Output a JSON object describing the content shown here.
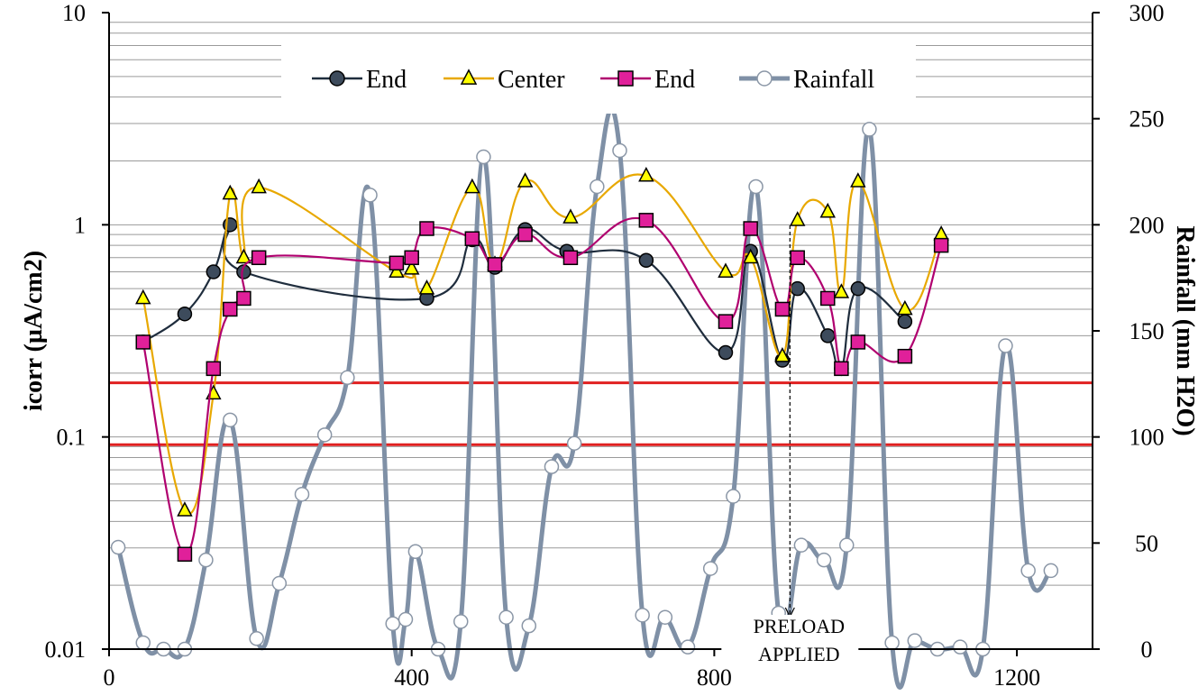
{
  "chart_data": {
    "type": "line",
    "title": "",
    "xlabel": "",
    "ylabel": "icorr (µA/cm2)",
    "y2label": "Rainfall (mm H2O)",
    "xlim": [
      0,
      1300
    ],
    "ylim": [
      0.01,
      10
    ],
    "yscale": "log",
    "y2lim": [
      0,
      300
    ],
    "x_ticks": [
      0,
      400,
      800,
      1200
    ],
    "x_tick_labels": [
      "0",
      "400",
      "800",
      "1200"
    ],
    "y_ticks": [
      0.01,
      0.1,
      1,
      10
    ],
    "y_tick_labels": [
      "0.01",
      "0.1",
      "1",
      "10"
    ],
    "y2_ticks": [
      0,
      50,
      100,
      150,
      200,
      250,
      300
    ],
    "y2_tick_labels": [
      "0",
      "50",
      "100",
      "150",
      "200",
      "250",
      "300"
    ],
    "legend_position": "top-center",
    "series": [
      {
        "name": "End",
        "axis": "left",
        "color": "#1f2d3d",
        "marker": "circle",
        "marker_fill": "#3d4b5c",
        "x": [
          45,
          100,
          138,
          160,
          178,
          420,
          480,
          510,
          550,
          605,
          710,
          815,
          848,
          890,
          910,
          950,
          968,
          990,
          1052
        ],
        "y": [
          0.28,
          0.38,
          0.6,
          1.0,
          0.6,
          0.45,
          0.85,
          0.63,
          0.95,
          0.75,
          0.68,
          0.25,
          0.75,
          0.23,
          0.5,
          0.3,
          0.21,
          0.5,
          0.35
        ]
      },
      {
        "name": "Center",
        "axis": "left",
        "color": "#e8a800",
        "marker": "triangle",
        "marker_fill": "#ffff00",
        "x": [
          45,
          100,
          138,
          160,
          178,
          198,
          380,
          400,
          420,
          480,
          510,
          550,
          610,
          710,
          815,
          848,
          890,
          910,
          950,
          968,
          990,
          1052,
          1100
        ],
        "y": [
          0.45,
          0.045,
          0.16,
          1.4,
          0.7,
          1.5,
          0.6,
          0.62,
          0.5,
          1.5,
          0.65,
          1.6,
          1.08,
          1.7,
          0.6,
          0.7,
          0.24,
          1.05,
          1.15,
          0.48,
          1.6,
          0.4,
          0.9
        ]
      },
      {
        "name": "End",
        "axis": "left",
        "color": "#b0006f",
        "marker": "square",
        "marker_fill": "#e0209a",
        "x": [
          45,
          100,
          138,
          160,
          178,
          198,
          380,
          400,
          420,
          480,
          510,
          550,
          610,
          710,
          815,
          848,
          890,
          910,
          950,
          968,
          990,
          1052,
          1100
        ],
        "y": [
          0.28,
          0.028,
          0.21,
          0.4,
          0.45,
          0.7,
          0.66,
          0.7,
          0.96,
          0.86,
          0.65,
          0.9,
          0.7,
          1.05,
          0.35,
          0.96,
          0.4,
          0.7,
          0.45,
          0.21,
          0.28,
          0.24,
          0.8
        ]
      },
      {
        "name": "Rainfall",
        "axis": "right",
        "color": "#7f90a6",
        "marker": "circle-open",
        "marker_fill": "#ffffff",
        "x": [
          12,
          45,
          72,
          100,
          128,
          160,
          195,
          225,
          255,
          285,
          315,
          345,
          375,
          392,
          405,
          435,
          465,
          495,
          525,
          555,
          585,
          615,
          645,
          675,
          705,
          735,
          765,
          795,
          825,
          855,
          885,
          915,
          945,
          975,
          1005,
          1035,
          1065,
          1095,
          1125,
          1155,
          1185,
          1215,
          1245
        ],
        "y": [
          48,
          3,
          0,
          0,
          42,
          108,
          5,
          31,
          73,
          101,
          128,
          214,
          12,
          14,
          46,
          0,
          13,
          232,
          15,
          11,
          86,
          97,
          218,
          235,
          16,
          15,
          1,
          38,
          72,
          218,
          17,
          49,
          42,
          49,
          245,
          3,
          4,
          0,
          1,
          0,
          143,
          37,
          37
        ]
      }
    ],
    "reference_lines": [
      {
        "axis": "left",
        "y": 0.18,
        "color": "#e02020"
      },
      {
        "axis": "left",
        "y": 0.092,
        "color": "#e02020"
      }
    ],
    "annotations": [
      {
        "text_line1": "PRELOAD",
        "text_line2": "APPLIED",
        "x": 900
      }
    ]
  }
}
